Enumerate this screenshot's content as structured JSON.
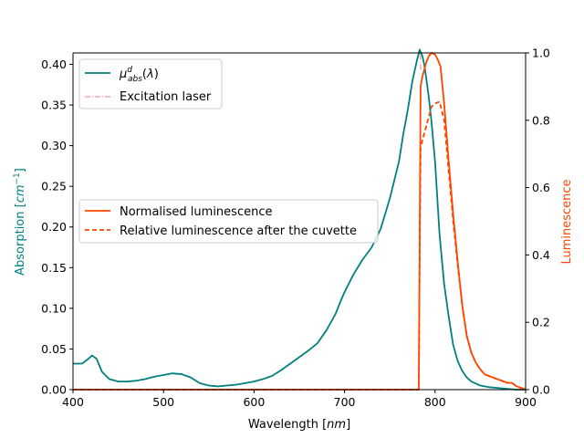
{
  "chart_data": {
    "type": "line",
    "xlabel": "Wavelength [nm]",
    "ylabel_left": "Absorption [cm⁻¹]",
    "ylabel_right": "Luminescence",
    "xlim": [
      400,
      900
    ],
    "ylim_left": [
      0,
      0.414
    ],
    "ylim_right": [
      0,
      1.0
    ],
    "x_ticks": [
      400,
      500,
      600,
      700,
      800,
      900
    ],
    "y_left_ticks": [
      0.0,
      0.05,
      0.1,
      0.15,
      0.2,
      0.25,
      0.3,
      0.35,
      0.4
    ],
    "y_left_tick_labels": [
      "0.00",
      "0.05",
      "0.10",
      "0.15",
      "0.20",
      "0.25",
      "0.30",
      "0.35",
      "0.40"
    ],
    "y_right_ticks": [
      0.0,
      0.2,
      0.4,
      0.6,
      0.8,
      1.0
    ],
    "y_right_tick_labels": [
      "0.0",
      "0.2",
      "0.4",
      "0.6",
      "0.8",
      "1.0"
    ],
    "legend_upper": {
      "placement": "top-left",
      "entries": [
        {
          "label": "μ^d_abs(λ)",
          "color": "#008080",
          "style": "solid"
        },
        {
          "label": "Excitation laser",
          "color": "#f08080",
          "style": "dashdot"
        }
      ]
    },
    "legend_lower": {
      "placement": "center-left",
      "entries": [
        {
          "label": "Normalised luminescence",
          "color": "#ff4500",
          "style": "solid"
        },
        {
          "label": "Relative luminescence after the cuvette",
          "color": "#ff4500",
          "style": "dashed"
        }
      ]
    },
    "series": [
      {
        "name": "μ^d_abs(λ)",
        "axis": "left",
        "color": "#008080",
        "style": "solid",
        "x": [
          400,
          410,
          416,
          421,
          426,
          432,
          440,
          450,
          460,
          470,
          480,
          490,
          500,
          510,
          520,
          530,
          540,
          550,
          560,
          570,
          580,
          590,
          600,
          610,
          620,
          630,
          640,
          650,
          660,
          670,
          680,
          690,
          695,
          700,
          710,
          720,
          730,
          740,
          750,
          760,
          765,
          770,
          775,
          780,
          783,
          786,
          788,
          790,
          793,
          796,
          800,
          805,
          810,
          815,
          820,
          825,
          830,
          835,
          840,
          850,
          860,
          870,
          880,
          890,
          900
        ],
        "y": [
          0.032,
          0.032,
          0.037,
          0.042,
          0.038,
          0.022,
          0.013,
          0.01,
          0.01,
          0.011,
          0.013,
          0.016,
          0.018,
          0.02,
          0.019,
          0.015,
          0.008,
          0.005,
          0.004,
          0.005,
          0.006,
          0.008,
          0.01,
          0.013,
          0.017,
          0.024,
          0.032,
          0.04,
          0.048,
          0.057,
          0.073,
          0.093,
          0.107,
          0.12,
          0.142,
          0.16,
          0.175,
          0.198,
          0.235,
          0.28,
          0.315,
          0.345,
          0.38,
          0.405,
          0.418,
          0.41,
          0.4,
          0.385,
          0.36,
          0.33,
          0.28,
          0.19,
          0.13,
          0.09,
          0.055,
          0.035,
          0.023,
          0.015,
          0.01,
          0.005,
          0.003,
          0.002,
          0.001,
          0.0,
          0.0
        ]
      },
      {
        "name": "Excitation laser",
        "axis": "right",
        "color": "#f08080",
        "style": "dashdot",
        "x": [
          784,
          784
        ],
        "y": [
          0.95,
          1.0
        ]
      },
      {
        "name": "Normalised luminescence",
        "axis": "right",
        "color": "#ff4500",
        "style": "solid",
        "x": [
          400,
          782,
          783,
          784,
          786,
          788,
          790,
          793,
          796,
          800,
          803,
          806,
          810,
          815,
          820,
          825,
          830,
          835,
          840,
          845,
          850,
          855,
          860,
          865,
          870,
          875,
          880,
          885,
          890,
          895,
          900
        ],
        "y": [
          0,
          0,
          0.45,
          0.9,
          0.93,
          0.95,
          0.97,
          0.99,
          1.0,
          0.995,
          0.98,
          0.96,
          0.85,
          0.68,
          0.52,
          0.38,
          0.25,
          0.16,
          0.11,
          0.08,
          0.06,
          0.045,
          0.04,
          0.035,
          0.03,
          0.025,
          0.02,
          0.02,
          0.01,
          0.005,
          0.0
        ]
      },
      {
        "name": "Relative luminescence after the cuvette",
        "axis": "right",
        "color": "#ff4500",
        "style": "dashed",
        "x": [
          400,
          782,
          783,
          784,
          787,
          790,
          793,
          796,
          800,
          805,
          810,
          815,
          820,
          825,
          830,
          835,
          840,
          845,
          850,
          855,
          860,
          865,
          870,
          875,
          880,
          885,
          890,
          895,
          900
        ],
        "y": [
          0,
          0,
          0.4,
          0.72,
          0.75,
          0.78,
          0.81,
          0.84,
          0.85,
          0.855,
          0.8,
          0.65,
          0.5,
          0.37,
          0.25,
          0.16,
          0.11,
          0.08,
          0.06,
          0.045,
          0.04,
          0.035,
          0.03,
          0.025,
          0.02,
          0.02,
          0.01,
          0.005,
          0.0
        ]
      }
    ]
  }
}
